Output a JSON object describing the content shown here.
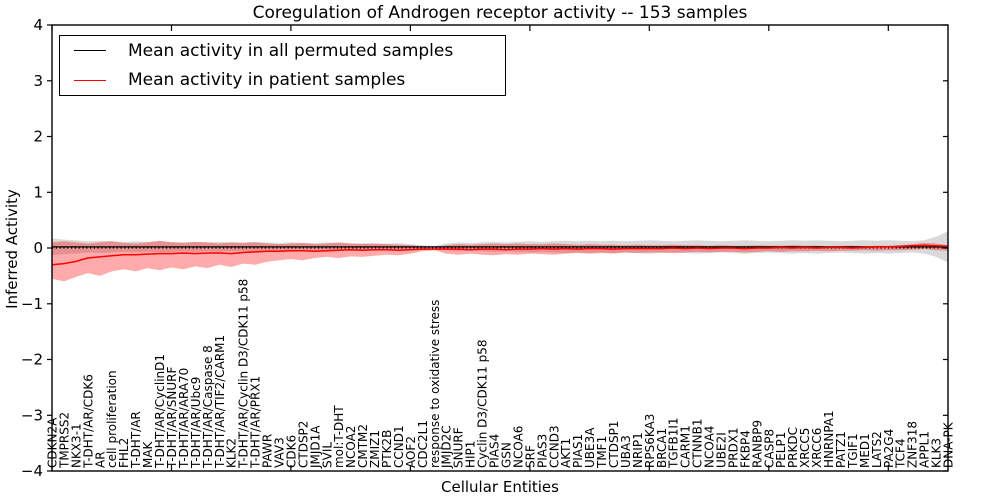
{
  "title": "Coregulation of Androgen receptor activity -- 153 samples",
  "legend": {
    "items": [
      {
        "label": "Mean activity in all permuted samples",
        "color": "#000000"
      },
      {
        "label": "Mean activity in patient samples",
        "color": "#ff0000"
      }
    ]
  },
  "axes": {
    "ylabel": "Inferred Activity",
    "xlabel": "Cellular Entities",
    "ytick_labels": [
      "4",
      "3",
      "2",
      "1",
      "0",
      "−1",
      "−2",
      "−3",
      "−4"
    ]
  },
  "chart_data": {
    "type": "line",
    "title": "Coregulation of Androgen receptor activity -- 153 samples",
    "xlabel": "Cellular Entities",
    "ylabel": "Inferred Activity",
    "ylim": [
      -4,
      4
    ],
    "yticks": [
      4,
      3,
      2,
      1,
      0,
      -1,
      -2,
      -3,
      -4
    ],
    "grid": false,
    "legend_position": "upper left",
    "zero_line": {
      "style": "dotted",
      "color": "#000000",
      "y": 0
    },
    "categories": [
      "CDKN2A",
      "TMPRSS2",
      "NKX3-1",
      "T-DHT/AR/CDK6",
      "AR",
      "cell proliferation",
      "FHL2",
      "T-DHT/AR",
      "MAK",
      "T-DHT/AR/CyclinD1",
      "T-DHT/AR/SNURF",
      "T-DHT/AR/ARA70",
      "T-DHT/AR/Ubc9",
      "T-DHT/AR/Caspase 8",
      "T-DHT/AR/TIF2/CARM1",
      "KLK2",
      "T-DHT/AR/Cyclin D3/CDK11 p58",
      "T-DHT/AR/PRX1",
      "PAWR",
      "VAV3",
      "CDK6",
      "CTDSP2",
      "JMJD1A",
      "SVIL",
      "mol:T-DHT",
      "NCOA2",
      "CMTM2",
      "ZMIZ1",
      "PTK2B",
      "CCND1",
      "AOF2",
      "CDC2L1",
      "response to oxidative stress",
      "JMJD2C",
      "SNURF",
      "HIP1",
      "Cyclin D3/CDK11 p58",
      "PIAS4",
      "GSN",
      "NCOA6",
      "SRF",
      "PIAS3",
      "CCND3",
      "AKT1",
      "PIAS1",
      "UBE3A",
      "TMF1",
      "CTDSP1",
      "UBA3",
      "NRIP1",
      "RPS6KA3",
      "BRCA1",
      "TGFB1I1",
      "CARM1",
      "CTNNB1",
      "NCOA4",
      "UBE2I",
      "PRDX1",
      "FKBP4",
      "RANBP9",
      "CASP8",
      "PELP1",
      "PRKDC",
      "XRCC5",
      "XRCC6",
      "HNRNPA1",
      "PATZ1",
      "TGIF1",
      "MED1",
      "LATS2",
      "PA2G4",
      "TCF4",
      "ZNF318",
      "APPL1",
      "KLK3",
      "DNA-PK"
    ],
    "series": [
      {
        "name": "Mean activity in all permuted samples",
        "color": "#000000",
        "style": "solid",
        "values": [
          0.02,
          0.02,
          0.02,
          0.02,
          0.02,
          0.02,
          0.02,
          0.02,
          0.02,
          0.02,
          0.02,
          0.02,
          0.02,
          0.02,
          0.02,
          0.02,
          0.02,
          0.02,
          0.02,
          0.02,
          0.02,
          0.02,
          0.02,
          0.02,
          0.02,
          0.02,
          0.02,
          0.02,
          0.02,
          0.02,
          0.02,
          0.02,
          0.02,
          0.02,
          0.02,
          0.02,
          0.02,
          0.02,
          0.02,
          0.02,
          0.02,
          0.02,
          0.02,
          0.02,
          0.02,
          0.02,
          0.02,
          0.02,
          0.02,
          0.02,
          0.02,
          0.02,
          0.02,
          0.02,
          0.02,
          0.02,
          0.02,
          0.02,
          0.02,
          0.02,
          0.02,
          0.02,
          0.02,
          0.02,
          0.02,
          0.02,
          0.02,
          0.02,
          0.02,
          0.02,
          0.02,
          0.02,
          0.02,
          0.02,
          0.02,
          0.02
        ]
      },
      {
        "name": "Mean activity in patient samples",
        "color": "#ff0000",
        "style": "solid",
        "values": [
          -0.3,
          -0.28,
          -0.24,
          -0.18,
          -0.16,
          -0.14,
          -0.12,
          -0.12,
          -0.11,
          -0.1,
          -0.1,
          -0.09,
          -0.1,
          -0.09,
          -0.09,
          -0.1,
          -0.08,
          -0.07,
          -0.06,
          -0.06,
          -0.05,
          -0.05,
          -0.06,
          -0.05,
          -0.04,
          -0.03,
          -0.04,
          -0.03,
          -0.03,
          -0.04,
          -0.03,
          -0.02,
          -0.02,
          -0.02,
          -0.02,
          -0.03,
          -0.02,
          -0.02,
          -0.03,
          -0.02,
          -0.02,
          -0.01,
          -0.02,
          -0.01,
          -0.02,
          -0.01,
          -0.01,
          -0.02,
          -0.01,
          -0.01,
          -0.01,
          -0.01,
          0.0,
          -0.01,
          0.0,
          -0.01,
          0.0,
          0.0,
          -0.01,
          0.0,
          0.0,
          0.01,
          0.0,
          0.01,
          0.0,
          0.01,
          0.01,
          0.0,
          0.01,
          0.02,
          0.02,
          0.03,
          0.04,
          0.05,
          0.04,
          0.03
        ]
      }
    ],
    "bands": [
      {
        "name": "permuted-std-band",
        "color": "#000000",
        "opacity": 0.15,
        "upper": [
          0.17,
          0.15,
          0.14,
          0.12,
          0.13,
          0.12,
          0.11,
          0.12,
          0.11,
          0.12,
          0.11,
          0.1,
          0.11,
          0.1,
          0.11,
          0.1,
          0.1,
          0.11,
          0.1,
          0.09,
          0.1,
          0.09,
          0.09,
          0.1,
          0.09,
          0.08,
          0.09,
          0.08,
          0.08,
          0.09,
          0.07,
          0.05,
          0.04,
          0.08,
          0.1,
          0.09,
          0.1,
          0.11,
          0.1,
          0.11,
          0.12,
          0.11,
          0.12,
          0.13,
          0.12,
          0.13,
          0.12,
          0.13,
          0.12,
          0.13,
          0.14,
          0.13,
          0.12,
          0.13,
          0.14,
          0.13,
          0.12,
          0.13,
          0.14,
          0.13,
          0.12,
          0.13,
          0.14,
          0.13,
          0.14,
          0.13,
          0.12,
          0.13,
          0.14,
          0.13,
          0.14,
          0.13,
          0.12,
          0.14,
          0.2,
          0.3
        ],
        "lower": [
          -0.13,
          -0.11,
          -0.1,
          -0.08,
          -0.09,
          -0.08,
          -0.07,
          -0.08,
          -0.07,
          -0.08,
          -0.07,
          -0.06,
          -0.07,
          -0.06,
          -0.07,
          -0.06,
          -0.06,
          -0.07,
          -0.06,
          -0.05,
          -0.06,
          -0.05,
          -0.05,
          -0.06,
          -0.05,
          -0.04,
          -0.05,
          -0.04,
          -0.04,
          -0.05,
          -0.03,
          -0.01,
          0.0,
          -0.04,
          -0.06,
          -0.05,
          -0.06,
          -0.07,
          -0.06,
          -0.07,
          -0.08,
          -0.07,
          -0.08,
          -0.09,
          -0.08,
          -0.09,
          -0.08,
          -0.09,
          -0.08,
          -0.09,
          -0.1,
          -0.09,
          -0.08,
          -0.09,
          -0.1,
          -0.09,
          -0.08,
          -0.09,
          -0.1,
          -0.09,
          -0.08,
          -0.09,
          -0.1,
          -0.09,
          -0.1,
          -0.09,
          -0.08,
          -0.09,
          -0.1,
          -0.09,
          -0.1,
          -0.09,
          -0.08,
          -0.1,
          -0.16,
          -0.26
        ]
      },
      {
        "name": "patient-std-band",
        "color": "#ff0000",
        "opacity": 0.33,
        "upper": [
          0.1,
          0.12,
          0.1,
          0.08,
          0.1,
          0.12,
          0.09,
          0.08,
          0.1,
          0.13,
          0.1,
          0.09,
          0.11,
          0.1,
          0.08,
          0.1,
          0.09,
          0.1,
          0.08,
          0.07,
          0.08,
          0.09,
          0.07,
          0.08,
          0.1,
          0.08,
          0.07,
          0.08,
          0.07,
          0.06,
          0.05,
          0.03,
          0.02,
          0.05,
          0.07,
          0.06,
          0.07,
          0.08,
          0.07,
          0.08,
          0.07,
          0.07,
          0.08,
          0.07,
          0.06,
          0.07,
          0.06,
          0.06,
          0.05,
          0.06,
          0.05,
          0.05,
          0.06,
          0.05,
          0.05,
          0.04,
          0.05,
          0.04,
          0.04,
          0.05,
          0.04,
          0.04,
          0.05,
          0.04,
          0.04,
          0.03,
          0.04,
          0.04,
          0.03,
          0.04,
          0.04,
          0.05,
          0.07,
          0.09,
          0.08,
          0.05
        ],
        "lower": [
          -0.55,
          -0.6,
          -0.52,
          -0.45,
          -0.5,
          -0.42,
          -0.38,
          -0.42,
          -0.36,
          -0.4,
          -0.35,
          -0.38,
          -0.33,
          -0.36,
          -0.3,
          -0.34,
          -0.28,
          -0.3,
          -0.25,
          -0.22,
          -0.2,
          -0.22,
          -0.18,
          -0.16,
          -0.18,
          -0.15,
          -0.16,
          -0.14,
          -0.12,
          -0.13,
          -0.1,
          -0.06,
          -0.04,
          -0.1,
          -0.12,
          -0.1,
          -0.12,
          -0.13,
          -0.11,
          -0.12,
          -0.1,
          -0.11,
          -0.12,
          -0.1,
          -0.09,
          -0.1,
          -0.09,
          -0.1,
          -0.08,
          -0.09,
          -0.08,
          -0.08,
          -0.09,
          -0.08,
          -0.07,
          -0.08,
          -0.07,
          -0.07,
          -0.08,
          -0.07,
          -0.06,
          -0.07,
          -0.06,
          -0.06,
          -0.05,
          -0.06,
          -0.05,
          -0.05,
          -0.04,
          -0.05,
          -0.04,
          -0.04,
          -0.03,
          -0.02,
          -0.04,
          -0.05
        ]
      }
    ]
  }
}
